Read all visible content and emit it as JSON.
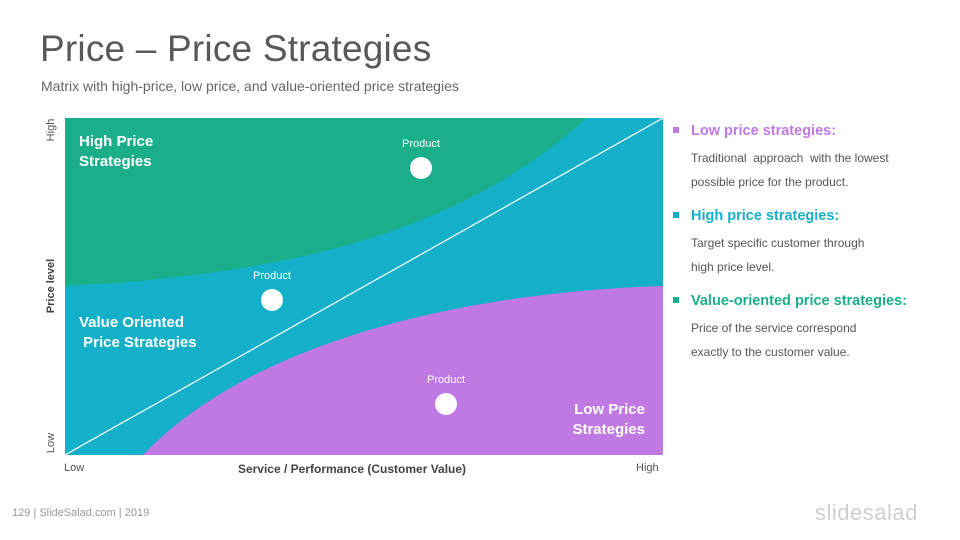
{
  "slide": {
    "title": "Price – Price Strategies",
    "subtitle": "Matrix with high-price, low price, and value-oriented price strategies"
  },
  "matrix": {
    "colors": {
      "high_price_region": "#1aaf8a",
      "value_region": "#14b0ca",
      "low_price_region": "#c079e3",
      "diagonal": "#ffffff"
    },
    "regions": {
      "high_price": "High Price\nStrategies",
      "value_oriented": "Value Oriented\n Price Strategies",
      "low_price": "Low Price\nStrategies"
    },
    "products": [
      {
        "label": "Product"
      },
      {
        "label": "Product"
      },
      {
        "label": "Product"
      }
    ],
    "y_axis": {
      "title": "Price level",
      "high": "High",
      "low": "Low"
    },
    "x_axis": {
      "title": "Service / Performance  (Customer Value)",
      "low": "Low",
      "high": "High"
    }
  },
  "notes": [
    {
      "heading": "Low price strategies:",
      "color": "#c079e3",
      "text": "Traditional  approach  with the lowest\npossible price for the product."
    },
    {
      "heading": "High price strategies:",
      "color": "#14b0ca",
      "text": "Target specific customer through\nhigh price level."
    },
    {
      "heading": "Value-oriented price strategies:",
      "color": "#1aaf8a",
      "text": "Price of the service correspond\nexactly to the customer value."
    }
  ],
  "footer": {
    "page_info": "129   | SlideSalad.com | 2019",
    "brand": "slidesalad"
  }
}
